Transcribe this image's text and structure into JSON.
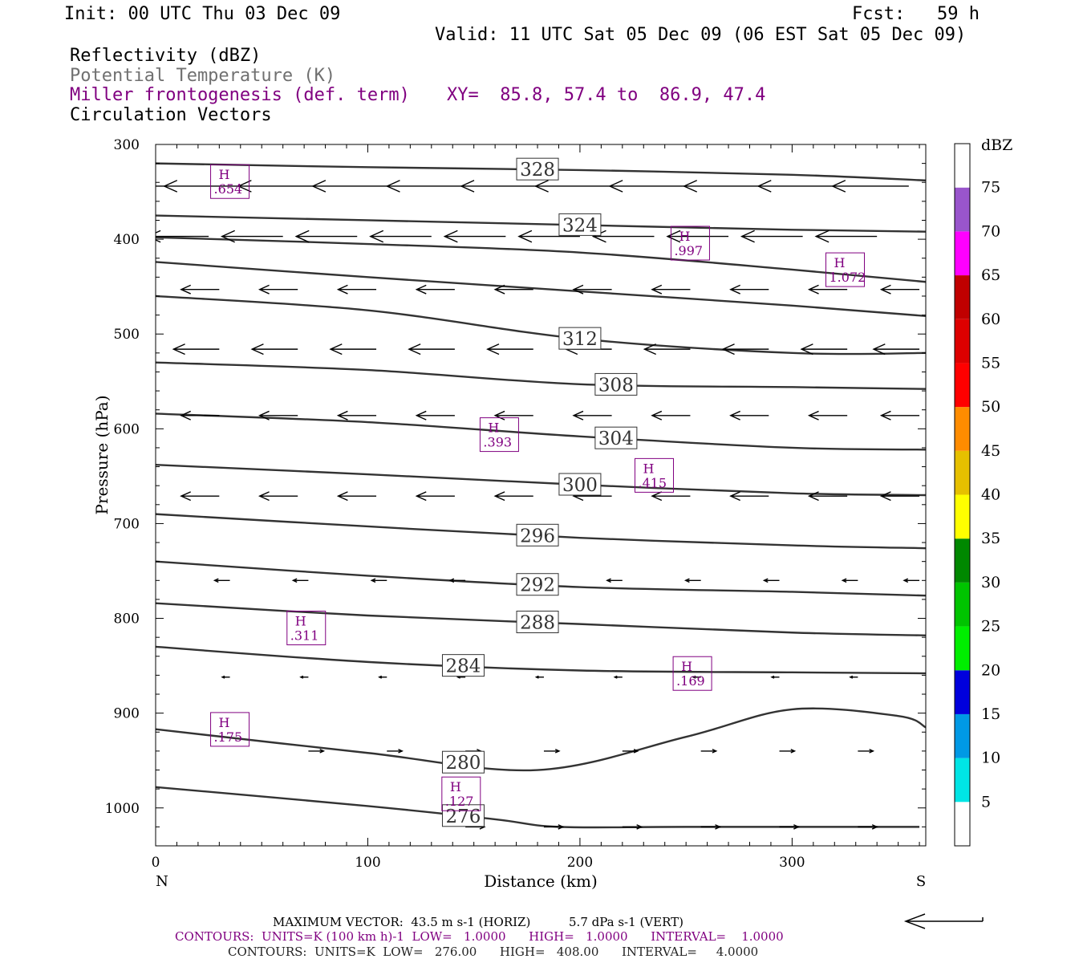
{
  "header": {
    "init": "Init: 00 UTC Thu 03 Dec 09",
    "fcst": "Fcst:   59 h",
    "valid": "Valid: 11 UTC Sat 05 Dec 09 (06 EST Sat 05 Dec 09)",
    "fields": [
      "Reflectivity (dBZ)",
      "Potential Temperature (K)",
      "Miller frontogenesis (def. term)",
      "Circulation Vectors"
    ],
    "xy": "XY=  85.8, 57.4 to  86.9, 47.4"
  },
  "chart_data": {
    "type": "cross-section",
    "xlabel": "Distance (km)",
    "ylabel": "Pressure (hPa)",
    "xlim": [
      0,
      363
    ],
    "ylim": [
      1040,
      300
    ],
    "y_reversed": true,
    "x_ticks": [
      0,
      100,
      200,
      300
    ],
    "y_ticks": [
      300,
      400,
      500,
      600,
      700,
      800,
      900,
      1000
    ],
    "x_end_labels": {
      "left": "N",
      "right": "S"
    },
    "theta_contours": [
      {
        "label": "328",
        "points": [
          [
            0,
            320
          ],
          [
            100,
            324
          ],
          [
            200,
            327
          ],
          [
            300,
            332
          ],
          [
            363,
            338
          ]
        ]
      },
      {
        "label": "324",
        "points": [
          [
            0,
            375
          ],
          [
            100,
            380
          ],
          [
            200,
            385
          ],
          [
            300,
            390
          ],
          [
            363,
            392
          ]
        ]
      },
      {
        "label": "",
        "points": [
          [
            0,
            398
          ],
          [
            100,
            405
          ],
          [
            200,
            414
          ],
          [
            300,
            432
          ],
          [
            363,
            445
          ]
        ]
      },
      {
        "label": "",
        "points": [
          [
            0,
            424
          ],
          [
            100,
            440
          ],
          [
            200,
            455
          ],
          [
            300,
            470
          ],
          [
            363,
            481
          ]
        ]
      },
      {
        "label": "312",
        "points": [
          [
            0,
            460
          ],
          [
            100,
            475
          ],
          [
            200,
            505
          ],
          [
            300,
            520
          ],
          [
            363,
            520
          ]
        ]
      },
      {
        "label": "308",
        "points": [
          [
            0,
            530
          ],
          [
            100,
            538
          ],
          [
            200,
            553
          ],
          [
            300,
            556
          ],
          [
            363,
            558
          ]
        ]
      },
      {
        "label": "304",
        "points": [
          [
            0,
            584
          ],
          [
            100,
            593
          ],
          [
            200,
            608
          ],
          [
            300,
            620
          ],
          [
            363,
            622
          ]
        ]
      },
      {
        "label": "300",
        "points": [
          [
            0,
            638
          ],
          [
            100,
            648
          ],
          [
            200,
            659
          ],
          [
            300,
            668
          ],
          [
            363,
            670
          ]
        ]
      },
      {
        "label": "296",
        "points": [
          [
            0,
            690
          ],
          [
            100,
            703
          ],
          [
            200,
            715
          ],
          [
            300,
            723
          ],
          [
            363,
            726
          ]
        ]
      },
      {
        "label": "292",
        "points": [
          [
            0,
            740
          ],
          [
            100,
            755
          ],
          [
            200,
            767
          ],
          [
            300,
            772
          ],
          [
            363,
            776
          ]
        ]
      },
      {
        "label": "288",
        "points": [
          [
            0,
            784
          ],
          [
            100,
            797
          ],
          [
            200,
            806
          ],
          [
            300,
            815
          ],
          [
            363,
            818
          ]
        ]
      },
      {
        "label": "284",
        "points": [
          [
            0,
            830
          ],
          [
            100,
            846
          ],
          [
            200,
            855
          ],
          [
            300,
            857
          ],
          [
            363,
            858
          ]
        ]
      },
      {
        "label": "280",
        "points": [
          [
            0,
            917
          ],
          [
            100,
            942
          ],
          [
            180,
            960
          ],
          [
            250,
            925
          ],
          [
            300,
            896
          ],
          [
            350,
            903
          ],
          [
            363,
            915
          ]
        ]
      },
      {
        "label": "276",
        "points": [
          [
            0,
            978
          ],
          [
            100,
            998
          ],
          [
            160,
            1012
          ],
          [
            190,
            1020
          ],
          [
            250,
            1020
          ],
          [
            360,
            1020
          ]
        ]
      }
    ],
    "frontogenesis_maxima": [
      {
        "label": "H",
        "value": ".654",
        "x": 35,
        "p": 340
      },
      {
        "label": "H",
        "value": ".997",
        "x": 252,
        "p": 405
      },
      {
        "label": "H",
        "value": "1.072",
        "x": 325,
        "p": 433
      },
      {
        "label": "H",
        "value": ".393",
        "x": 162,
        "p": 607
      },
      {
        "label": "H",
        "value": ".415",
        "x": 235,
        "p": 650
      },
      {
        "label": "H",
        "value": ".311",
        "x": 71,
        "p": 811
      },
      {
        "label": "H",
        "value": ".169",
        "x": 253,
        "p": 859
      },
      {
        "label": "H",
        "value": ".175",
        "x": 35,
        "p": 918
      },
      {
        "label": "H",
        "value": ".127",
        "x": 144,
        "p": 986
      }
    ],
    "colorbar": {
      "unit": "dBZ",
      "labels": [
        "5",
        "10",
        "15",
        "20",
        "25",
        "30",
        "35",
        "40",
        "45",
        "50",
        "55",
        "60",
        "65",
        "70",
        "75"
      ],
      "colors": [
        "#ffffff",
        "#00e5e5",
        "#0099e5",
        "#0000dd",
        "#00ee00",
        "#00c400",
        "#008800",
        "#ffff00",
        "#e6c000",
        "#ff8c00",
        "#ff0000",
        "#dd0000",
        "#c00000",
        "#ff00ff",
        "#9955cc",
        "#ffffff"
      ]
    },
    "vectors": [
      {
        "p": 344,
        "u": -1.0,
        "xs": [
          5,
          40,
          75,
          110,
          145,
          180,
          215,
          250,
          285,
          320,
          355
        ]
      },
      {
        "p": 397,
        "u": -0.8,
        "xs": [
          25,
          60,
          95,
          130,
          165,
          200,
          235,
          270,
          305,
          340
        ]
      },
      {
        "p": 453,
        "u": -0.5,
        "xs": [
          30,
          67,
          104,
          141,
          178,
          215,
          252,
          289,
          326,
          360
        ]
      },
      {
        "p": 516,
        "u": -0.6,
        "xs": [
          30,
          67,
          104,
          141,
          178,
          215,
          252,
          289,
          326,
          360
        ]
      },
      {
        "p": 586,
        "u": -0.5,
        "xs": [
          30,
          67,
          104,
          141,
          178,
          215,
          252,
          289,
          326,
          360
        ]
      },
      {
        "p": 671,
        "u": -0.5,
        "xs": [
          30,
          67,
          104,
          141,
          178,
          215,
          252,
          289,
          326,
          360
        ]
      },
      {
        "p": 760,
        "u": -0.2,
        "xs": [
          35,
          72,
          109,
          146,
          183,
          220,
          257,
          294,
          331,
          360
        ]
      },
      {
        "p": 862,
        "u": -0.1,
        "xs": [
          35,
          72,
          109,
          146,
          183,
          220,
          257,
          294,
          331
        ]
      },
      {
        "p": 940,
        "u": 0.2,
        "xs": [
          72,
          109,
          146,
          183,
          220,
          257,
          294,
          331
        ]
      },
      {
        "p": 1020,
        "u": 0.25,
        "xs": [
          146,
          183,
          220,
          257,
          294,
          331
        ]
      }
    ]
  },
  "footer": {
    "max_vector_text": "MAXIMUM VECTOR:  43.5 m s-1 (HORIZ)          5.7 dPa s-1 (VERT)",
    "contours1": "CONTOURS:  UNITS=K (100 km h)-1  LOW=   1.0000      HIGH=   1.0000      INTERVAL=    1.0000",
    "contours2": "CONTOURS:  UNITS=K  LOW=   276.00      HIGH=   408.00      INTERVAL=     4.0000"
  },
  "colors": {
    "theta": "#333333",
    "fronto": "#800080",
    "vector": "#000000"
  }
}
